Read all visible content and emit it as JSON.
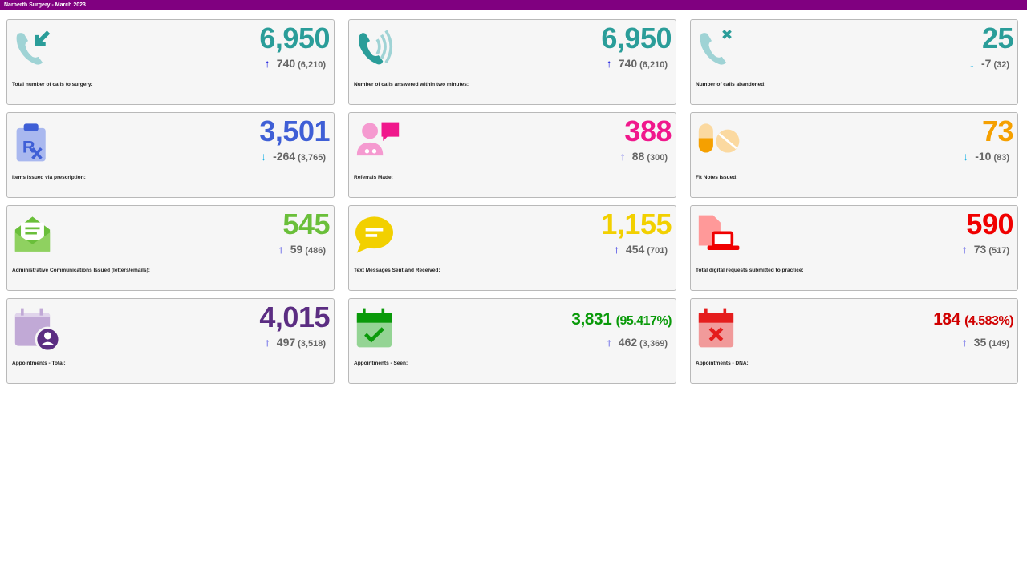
{
  "header": {
    "title": "Narberth Surgery - March 2023"
  },
  "arrow_colors": {
    "up": "#1a1ae0",
    "down": "#22b4e6"
  },
  "cards": [
    {
      "label": "Total number of calls to surgery:",
      "value": "6,950",
      "change": "740",
      "previous": "(6,210)",
      "direction": "up",
      "color": "#2a9d99",
      "icon": "phone-incoming-icon"
    },
    {
      "label": "Number of calls answered within two minutes:",
      "value": "6,950",
      "change": "740",
      "previous": "(6,210)",
      "direction": "up",
      "color": "#2a9d99",
      "icon": "phone-ringing-icon"
    },
    {
      "label": "Number of calls abandoned:",
      "value": "25",
      "change": "-7",
      "previous": "(32)",
      "direction": "down",
      "color": "#2a9d99",
      "icon": "phone-missed-icon"
    },
    {
      "label": "Items issued via prescription:",
      "value": "3,501",
      "change": "-264",
      "previous": "(3,765)",
      "direction": "down",
      "color": "#3f5fd6",
      "icon": "prescription-clipboard-icon"
    },
    {
      "label": "Referrals Made:",
      "value": "388",
      "change": "88",
      "previous": "(300)",
      "direction": "up",
      "color": "#f0188c",
      "icon": "doctor-chat-icon"
    },
    {
      "label": "Fit Notes Issued:",
      "value": "73",
      "change": "-10",
      "previous": "(83)",
      "direction": "down",
      "color": "#f5a000",
      "icon": "pills-icon"
    },
    {
      "label": "Administrative Communications Issued (letters/emails):",
      "value": "545",
      "change": "59",
      "previous": "(486)",
      "direction": "up",
      "color": "#6abf3a",
      "icon": "mail-open-icon"
    },
    {
      "label": "Text Messages Sent and Received:",
      "value": "1,155",
      "change": "454",
      "previous": "(701)",
      "direction": "up",
      "color": "#f2d000",
      "icon": "speech-bubble-icon"
    },
    {
      "label": "Total digital requests submitted to practice:",
      "value": "590",
      "change": "73",
      "previous": "(517)",
      "direction": "up",
      "color": "#f00000",
      "icon": "laptop-document-icon"
    },
    {
      "label": "Appointments - Total:",
      "value": "4,015",
      "change": "497",
      "previous": "(3,518)",
      "direction": "up",
      "color": "#5b2d82",
      "icon": "calendar-user-icon"
    },
    {
      "label": "Appointments - Seen:",
      "value": "3,831",
      "percent": "(95.417%)",
      "change": "462",
      "previous": "(3,369)",
      "direction": "up",
      "color": "#0a9a0a",
      "icon": "calendar-check-icon"
    },
    {
      "label": "Appointments - DNA:",
      "value": "184",
      "percent": "(4.583%)",
      "change": "35",
      "previous": "(149)",
      "direction": "up",
      "color": "#d00000",
      "icon": "calendar-cross-icon"
    }
  ]
}
